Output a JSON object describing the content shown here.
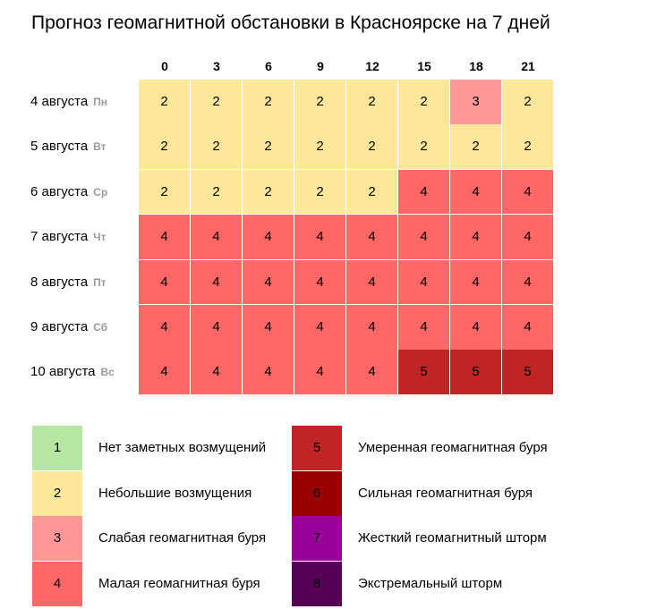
{
  "chart_data": {
    "type": "heatmap",
    "title": "Прогноз геомагнитной обстановки в Красноярске на 7 дней",
    "columns": [
      "0",
      "3",
      "6",
      "9",
      "12",
      "15",
      "18",
      "21"
    ],
    "rows": [
      {
        "date": "4 августа",
        "weekday": "Пн",
        "values": [
          2,
          2,
          2,
          2,
          2,
          2,
          3,
          2
        ]
      },
      {
        "date": "5 августа",
        "weekday": "Вт",
        "values": [
          2,
          2,
          2,
          2,
          2,
          2,
          2,
          2
        ]
      },
      {
        "date": "6 августа",
        "weekday": "Ср",
        "values": [
          2,
          2,
          2,
          2,
          2,
          4,
          4,
          4
        ]
      },
      {
        "date": "7 августа",
        "weekday": "Чт",
        "values": [
          4,
          4,
          4,
          4,
          4,
          4,
          4,
          4
        ]
      },
      {
        "date": "8 августа",
        "weekday": "Пт",
        "values": [
          4,
          4,
          4,
          4,
          4,
          4,
          4,
          4
        ]
      },
      {
        "date": "9 августа",
        "weekday": "Сб",
        "values": [
          4,
          4,
          4,
          4,
          4,
          4,
          4,
          4
        ]
      },
      {
        "date": "10 августа",
        "weekday": "Вс",
        "values": [
          4,
          4,
          4,
          4,
          4,
          5,
          5,
          5
        ]
      }
    ],
    "legend": [
      {
        "level": "1",
        "label": "Нет заметных возмущений",
        "color": "#b6e6a2"
      },
      {
        "level": "2",
        "label": "Небольшие возмущения",
        "color": "#fde79b"
      },
      {
        "level": "3",
        "label": "Слабая геомагнитная буря",
        "color": "#ff9999"
      },
      {
        "level": "4",
        "label": "Малая геомагнитная буря",
        "color": "#ff6666"
      },
      {
        "level": "5",
        "label": "Умеренная геомагнитная буря",
        "color": "#c02426"
      },
      {
        "level": "6",
        "label": "Сильная геомагнитная буря",
        "color": "#990000"
      },
      {
        "level": "7",
        "label": "Жесткий геомагнитный шторм",
        "color": "#990099"
      },
      {
        "level": "8",
        "label": "Экстремальный шторм",
        "color": "#550055"
      }
    ]
  }
}
